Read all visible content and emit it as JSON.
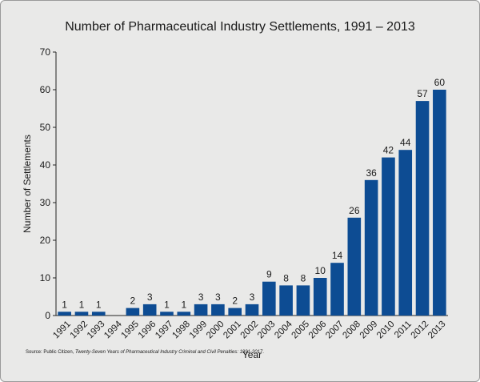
{
  "chart_data": {
    "type": "bar",
    "title": "Number of Pharmaceutical Industry Settlements, 1991 – 2013",
    "xlabel": "Year",
    "ylabel": "Number of Settlements",
    "ylim": [
      0,
      70
    ],
    "yticks": [
      "0",
      "10",
      "20",
      "30",
      "40",
      "50",
      "60",
      "70"
    ],
    "grid": false,
    "categories": [
      "1991",
      "1992",
      "1993",
      "1994",
      "1995",
      "1996",
      "1997",
      "1998",
      "1999",
      "2000",
      "2001",
      "2002",
      "2003",
      "2004",
      "2005",
      "2006",
      "2007",
      "2008",
      "2009",
      "2010",
      "2011",
      "2012",
      "2013"
    ],
    "values": [
      1,
      1,
      1,
      0,
      2,
      3,
      1,
      1,
      3,
      3,
      2,
      3,
      9,
      8,
      8,
      10,
      14,
      26,
      36,
      42,
      44,
      57,
      60
    ],
    "data_labels": [
      "1",
      "1",
      "1",
      "",
      "2",
      "3",
      "1",
      "1",
      "3",
      "3",
      "2",
      "3",
      "9",
      "8",
      "8",
      "10",
      "14",
      "26",
      "36",
      "42",
      "44",
      "57",
      "60"
    ],
    "bar_color": "#0d4c93"
  },
  "source": {
    "prefix": "Source: Public Citizen, ",
    "italic_title": "Twenty-Seven Years of Pharmaceutical Industry Criminal and Civil Penalties: 1991-2017",
    "suffix": "."
  }
}
